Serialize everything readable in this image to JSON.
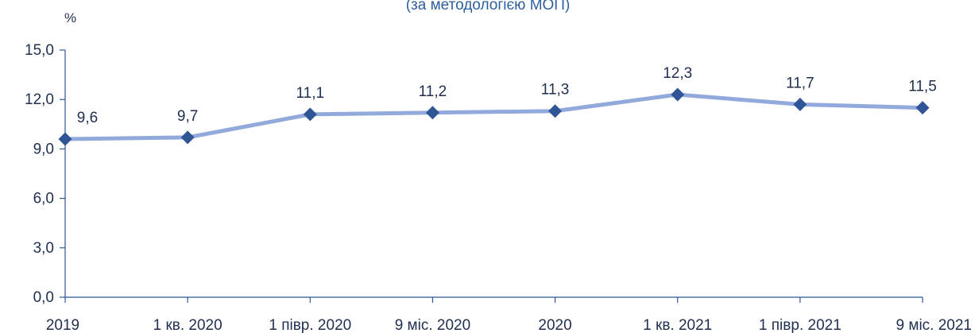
{
  "colors": {
    "line": "#92a9dc",
    "marker": "#2f5597",
    "axis": "#2f5597",
    "text": "#1f2f4f",
    "title": "#2e5f9e"
  },
  "chart_data": {
    "type": "line",
    "title": "(за методологією МОП)",
    "ylabel": "%",
    "xlabel": "",
    "categories": [
      "2019",
      "1 кв. 2020",
      "1 півр. 2020",
      "9 міс. 2020",
      "2020",
      "1 кв. 2021",
      "1 півр. 2021",
      "9 міс. 2021"
    ],
    "series": [
      {
        "values": [
          9.6,
          9.7,
          11.1,
          11.2,
          11.3,
          12.3,
          11.7,
          11.5
        ]
      }
    ],
    "data_labels": [
      "9,6",
      "9,7",
      "11,1",
      "11,2",
      "11,3",
      "12,3",
      "11,7",
      "11,5"
    ],
    "ylim": [
      0,
      15
    ],
    "yticks": [
      "0,0",
      "3,0",
      "6,0",
      "9,0",
      "12,0",
      "15,0"
    ],
    "ytick_values": [
      0,
      3,
      6,
      9,
      12,
      15
    ],
    "grid": false,
    "legend": "none"
  }
}
